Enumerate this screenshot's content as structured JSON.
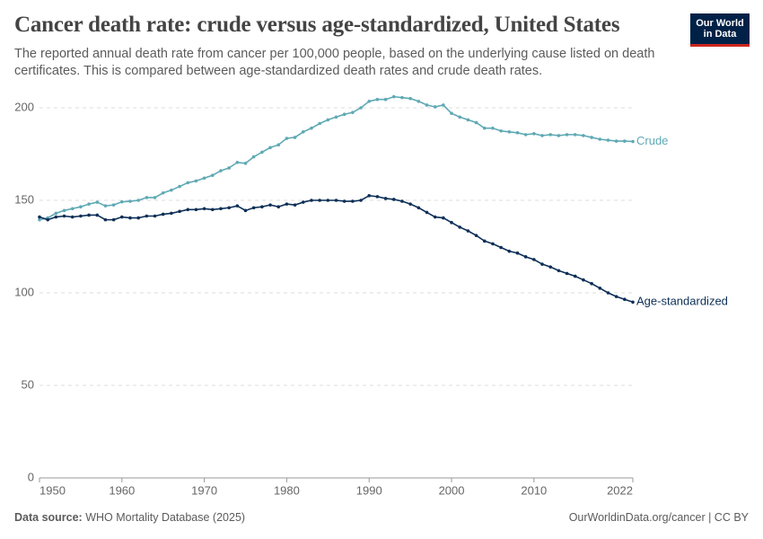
{
  "chart_data": {
    "type": "line",
    "title": "Cancer death rate: crude versus age-standardized, United States",
    "subtitle": "The reported annual death rate from cancer per 100,000 people, based on the underlying cause listed on death certificates. This is compared between age-standardized death rates and crude death rates.",
    "logo": [
      "Our World",
      "in Data"
    ],
    "source_label": "Data source:",
    "source": "WHO Mortality Database (2025)",
    "credit": "OurWorldinData.org/cancer | CC BY",
    "x": [
      1950,
      1951,
      1952,
      1953,
      1954,
      1955,
      1956,
      1957,
      1958,
      1959,
      1960,
      1961,
      1962,
      1963,
      1964,
      1965,
      1966,
      1967,
      1968,
      1969,
      1970,
      1971,
      1972,
      1973,
      1974,
      1975,
      1976,
      1977,
      1978,
      1979,
      1980,
      1981,
      1982,
      1983,
      1984,
      1985,
      1986,
      1987,
      1988,
      1989,
      1990,
      1991,
      1992,
      1993,
      1994,
      1995,
      1996,
      1997,
      1998,
      1999,
      2000,
      2001,
      2002,
      2003,
      2004,
      2005,
      2006,
      2007,
      2008,
      2009,
      2010,
      2011,
      2012,
      2013,
      2014,
      2015,
      2016,
      2017,
      2018,
      2019,
      2020,
      2021,
      2022
    ],
    "xlim": [
      1950,
      2022
    ],
    "xticks": [
      1950,
      1960,
      1970,
      1980,
      1990,
      2000,
      2010,
      2022
    ],
    "ylim": [
      0,
      210
    ],
    "yticks": [
      0,
      50,
      100,
      150,
      200
    ],
    "grid": true,
    "series": [
      {
        "name": "Crude",
        "color": "#5fa9b4",
        "values": [
          139.5,
          140.5,
          143,
          144.5,
          145.5,
          146.5,
          148,
          149,
          147,
          147.5,
          149.2,
          149.5,
          150,
          151.5,
          151.5,
          154,
          155.5,
          157.5,
          159.5,
          160.5,
          162,
          163.5,
          166,
          167.5,
          170.5,
          170,
          173.5,
          176,
          178.5,
          180,
          183.5,
          184,
          187,
          189,
          191.5,
          193.5,
          195,
          196.5,
          197.5,
          200,
          203.5,
          204.5,
          204.5,
          206,
          205.5,
          205,
          203.5,
          201.5,
          200.5,
          201.5,
          197,
          195,
          193.5,
          192,
          189,
          189,
          187.5,
          187,
          186.5,
          185.5,
          186,
          185,
          185.5,
          185,
          185.5,
          185.5,
          185,
          184,
          183,
          182.5,
          182,
          182,
          181.8
        ]
      },
      {
        "name": "Age-standardized",
        "color": "#0d2f57",
        "values": [
          141,
          139.5,
          141,
          141.5,
          141,
          141.5,
          142,
          142,
          139.5,
          139.5,
          141,
          140.5,
          140.5,
          141.5,
          141.5,
          142.5,
          143,
          144,
          145,
          145,
          145.5,
          145,
          145.5,
          146,
          147,
          144.5,
          146,
          146.5,
          147.5,
          146.5,
          148,
          147.5,
          149,
          150,
          150,
          150,
          150,
          149.5,
          149.5,
          150,
          152.5,
          152,
          151,
          150.5,
          149.5,
          148,
          146,
          143.5,
          141,
          140.5,
          138,
          135.5,
          133.5,
          131,
          128,
          126.5,
          124.5,
          122.5,
          121.5,
          119.5,
          118,
          115.5,
          114,
          112,
          110.5,
          109,
          107,
          105,
          102.5,
          100,
          98,
          96.5,
          95
        ]
      }
    ]
  }
}
